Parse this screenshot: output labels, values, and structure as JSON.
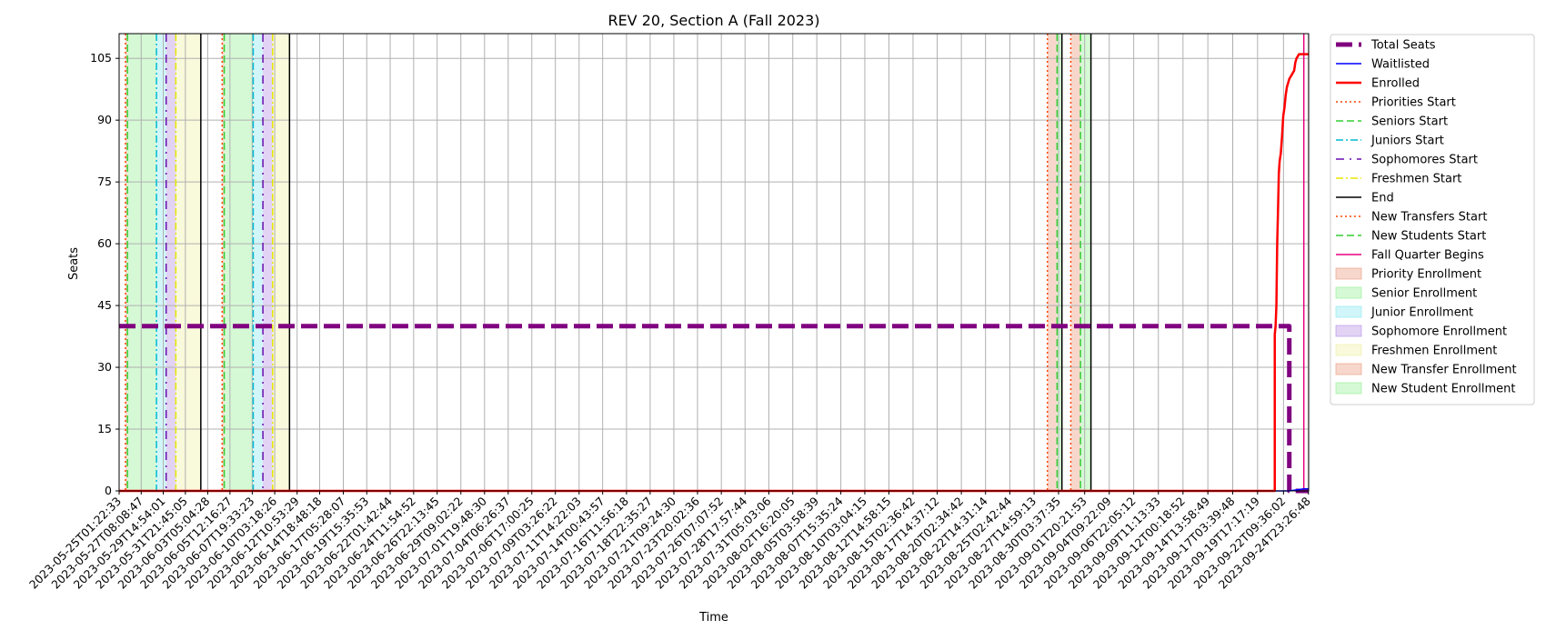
{
  "chart_data": {
    "type": "line",
    "title": "REV 20, Section A (Fall 2023)",
    "xlabel": "Time",
    "ylabel": "Seats",
    "ylim": [
      0,
      111
    ],
    "xlim": [
      "2023-05-25T01:22:33",
      "2023-09-25T00:00:00"
    ],
    "y_ticks": [
      0,
      15,
      30,
      45,
      60,
      75,
      90,
      105
    ],
    "x_ticks": [
      "2023-05-25T01:22:33",
      "2023-05-27T08:08:47",
      "2023-05-29T14:54:01",
      "2023-05-31T21:45:05",
      "2023-06-03T05:04:28",
      "2023-06-05T12:16:27",
      "2023-06-07T19:33:23",
      "2023-06-10T03:18:26",
      "2023-06-12T10:53:29",
      "2023-06-14T18:48:18",
      "2023-06-17T05:28:07",
      "2023-06-19T15:35:53",
      "2023-06-22T01:42:44",
      "2023-06-24T11:54:52",
      "2023-06-26T22:13:45",
      "2023-06-29T09:02:22",
      "2023-07-01T19:48:30",
      "2023-07-04T06:26:37",
      "2023-07-06T17:00:25",
      "2023-07-09T03:26:22",
      "2023-07-11T14:22:03",
      "2023-07-14T00:43:57",
      "2023-07-16T11:56:18",
      "2023-07-18T22:35:27",
      "2023-07-21T09:24:30",
      "2023-07-23T20:02:36",
      "2023-07-26T07:07:52",
      "2023-07-28T17:57:44",
      "2023-07-31T05:03:06",
      "2023-08-02T16:20:05",
      "2023-08-05T03:58:39",
      "2023-08-07T15:35:24",
      "2023-08-10T03:04:15",
      "2023-08-12T14:58:15",
      "2023-08-15T02:36:42",
      "2023-08-17T14:37:12",
      "2023-08-20T02:34:42",
      "2023-08-22T14:31:14",
      "2023-08-25T02:42:44",
      "2023-08-27T14:59:13",
      "2023-08-30T03:37:35",
      "2023-09-01T20:21:53",
      "2023-09-04T09:22:09",
      "2023-09-06T22:05:12",
      "2023-09-09T11:13:33",
      "2023-09-12T00:18:52",
      "2023-09-14T13:58:49",
      "2023-09-17T03:39:48",
      "2023-09-19T17:17:19",
      "2023-09-22T09:36:02",
      "2023-09-24T23:26:48"
    ],
    "grid": true,
    "legend_placement": "outside-right",
    "series": [
      {
        "name": "Total Seats",
        "color": "#800080",
        "style": "dashed-thick",
        "points": [
          [
            "2023-05-25T01:22:33",
            40
          ],
          [
            "2023-09-23T00:00:00",
            40
          ],
          [
            "2023-09-23T00:00:00",
            0
          ],
          [
            "2023-09-25T00:00:00",
            0
          ]
        ]
      },
      {
        "name": "Waitlisted",
        "color": "#0000ff",
        "style": "solid",
        "points": [
          [
            "2023-05-25T01:22:33",
            0
          ],
          [
            "2023-09-23T00:00:00",
            0
          ],
          [
            "2023-09-24T12:00:00",
            0.5
          ],
          [
            "2023-09-25T00:00:00",
            0.5
          ]
        ]
      },
      {
        "name": "Enrolled",
        "color": "#ff0000",
        "style": "solid-thick",
        "points": [
          [
            "2023-05-25T01:22:33",
            0
          ],
          [
            "2023-09-21T12:00:00",
            0
          ],
          [
            "2023-09-21T12:00:00",
            38
          ],
          [
            "2023-09-21T14:00:00",
            40
          ],
          [
            "2023-09-21T16:00:00",
            45
          ],
          [
            "2023-09-21T18:00:00",
            60
          ],
          [
            "2023-09-21T20:00:00",
            68
          ],
          [
            "2023-09-21T22:00:00",
            77
          ],
          [
            "2023-09-22T00:00:00",
            80
          ],
          [
            "2023-09-22T03:00:00",
            82
          ],
          [
            "2023-09-22T06:00:00",
            86
          ],
          [
            "2023-09-22T09:00:00",
            91
          ],
          [
            "2023-09-22T12:00:00",
            93
          ],
          [
            "2023-09-22T15:00:00",
            96
          ],
          [
            "2023-09-22T18:00:00",
            98
          ],
          [
            "2023-09-23T00:00:00",
            100
          ],
          [
            "2023-09-23T06:00:00",
            101
          ],
          [
            "2023-09-23T12:00:00",
            102
          ],
          [
            "2023-09-23T15:00:00",
            104
          ],
          [
            "2023-09-23T18:00:00",
            105
          ],
          [
            "2023-09-24T00:00:00",
            106
          ],
          [
            "2023-09-24T12:00:00",
            106
          ],
          [
            "2023-09-25T00:00:00",
            106
          ]
        ]
      }
    ],
    "vlines": [
      {
        "name": "Priorities Start",
        "color": "#ff4500",
        "style": "dotted",
        "x": [
          "2023-05-25T17:00:00",
          "2023-06-04T17:00:00"
        ]
      },
      {
        "name": "Seniors Start",
        "color": "#32cd32",
        "style": "dashed",
        "x": [
          "2023-05-25T22:00:00",
          "2023-06-04T22:00:00"
        ]
      },
      {
        "name": "Juniors Start",
        "color": "#00bcd4",
        "style": "dashdot",
        "x": [
          "2023-05-28T22:00:00",
          "2023-06-07T22:00:00"
        ]
      },
      {
        "name": "Sophomores Start",
        "color": "#6a0dad",
        "style": "dashdot-sparse",
        "x": [
          "2023-05-29T22:00:00",
          "2023-06-08T22:00:00"
        ]
      },
      {
        "name": "Freshmen Start",
        "color": "#e6e600",
        "style": "dashdot",
        "x": [
          "2023-05-30T22:00:00",
          "2023-06-09T22:00:00"
        ]
      },
      {
        "name": "End",
        "color": "#000000",
        "style": "solid",
        "x": [
          "2023-06-02T12:00:00",
          "2023-06-11T16:00:00",
          "2023-08-30T12:00:00",
          "2023-09-02T12:00:00"
        ]
      },
      {
        "name": "New Transfers Start",
        "color": "#ff4500",
        "style": "dotted",
        "x": [
          "2023-08-29T00:00:00",
          "2023-08-31T10:00:00"
        ]
      },
      {
        "name": "New Students Start",
        "color": "#32cd32",
        "style": "dashed",
        "x": [
          "2023-08-30T00:00:00",
          "2023-09-01T10:00:00"
        ]
      },
      {
        "name": "Fall Quarter Begins",
        "color": "#e6007e",
        "style": "solid",
        "x": [
          "2023-09-24T12:00:00"
        ]
      }
    ],
    "spans": [
      {
        "name": "Priority Enrollment",
        "color": "#e9967a",
        "ranges": [
          [
            "2023-05-25T17:00:00",
            "2023-05-25T22:00:00"
          ],
          [
            "2023-06-04T17:00:00",
            "2023-06-04T22:00:00"
          ]
        ]
      },
      {
        "name": "Senior Enrollment",
        "color": "#90ee90",
        "ranges": [
          [
            "2023-05-25T22:00:00",
            "2023-05-28T22:00:00"
          ],
          [
            "2023-06-04T22:00:00",
            "2023-06-07T22:00:00"
          ]
        ]
      },
      {
        "name": "Junior Enrollment",
        "color": "#87e8f0",
        "ranges": [
          [
            "2023-05-28T22:00:00",
            "2023-05-29T22:00:00"
          ],
          [
            "2023-06-07T22:00:00",
            "2023-06-08T22:00:00"
          ]
        ]
      },
      {
        "name": "Sophomore Enrollment",
        "color": "#b48ce6",
        "ranges": [
          [
            "2023-05-29T22:00:00",
            "2023-05-30T22:00:00"
          ],
          [
            "2023-06-08T22:00:00",
            "2023-06-09T22:00:00"
          ]
        ]
      },
      {
        "name": "Freshmen Enrollment",
        "color": "#f0f0a0",
        "ranges": [
          [
            "2023-05-30T22:00:00",
            "2023-06-02T12:00:00"
          ],
          [
            "2023-06-09T22:00:00",
            "2023-06-11T16:00:00"
          ]
        ]
      },
      {
        "name": "New Transfer Enrollment",
        "color": "#e9967a",
        "ranges": [
          [
            "2023-08-29T00:00:00",
            "2023-08-30T00:00:00"
          ],
          [
            "2023-08-31T10:00:00",
            "2023-09-01T10:00:00"
          ]
        ]
      },
      {
        "name": "New Student Enrollment",
        "color": "#90ee90",
        "ranges": [
          [
            "2023-08-30T00:00:00",
            "2023-08-30T12:00:00"
          ],
          [
            "2023-09-01T10:00:00",
            "2023-09-02T12:00:00"
          ]
        ]
      }
    ],
    "legend": [
      {
        "label": "Total Seats",
        "kind": "line",
        "color": "#800080",
        "style": "dashed-thick"
      },
      {
        "label": "Waitlisted",
        "kind": "line",
        "color": "#0000ff",
        "style": "solid"
      },
      {
        "label": "Enrolled",
        "kind": "line",
        "color": "#ff0000",
        "style": "solid-thick"
      },
      {
        "label": "Priorities Start",
        "kind": "line",
        "color": "#ff4500",
        "style": "dotted"
      },
      {
        "label": "Seniors Start",
        "kind": "line",
        "color": "#32cd32",
        "style": "dashed"
      },
      {
        "label": "Juniors Start",
        "kind": "line",
        "color": "#00bcd4",
        "style": "dashdot"
      },
      {
        "label": "Sophomores Start",
        "kind": "line",
        "color": "#6a0dad",
        "style": "dashdot-sparse"
      },
      {
        "label": "Freshmen Start",
        "kind": "line",
        "color": "#e6e600",
        "style": "dashdot"
      },
      {
        "label": "End",
        "kind": "line",
        "color": "#000000",
        "style": "solid"
      },
      {
        "label": "New Transfers Start",
        "kind": "line",
        "color": "#ff4500",
        "style": "dotted"
      },
      {
        "label": "New Students Start",
        "kind": "line",
        "color": "#32cd32",
        "style": "dashed"
      },
      {
        "label": "Fall Quarter Begins",
        "kind": "line",
        "color": "#e6007e",
        "style": "solid"
      },
      {
        "label": "Priority Enrollment",
        "kind": "patch",
        "color": "#e9967a"
      },
      {
        "label": "Senior Enrollment",
        "kind": "patch",
        "color": "#90ee90"
      },
      {
        "label": "Junior Enrollment",
        "kind": "patch",
        "color": "#87e8f0"
      },
      {
        "label": "Sophomore Enrollment",
        "kind": "patch",
        "color": "#b48ce6"
      },
      {
        "label": "Freshmen Enrollment",
        "kind": "patch",
        "color": "#f0f0a0"
      },
      {
        "label": "New Transfer Enrollment",
        "kind": "patch",
        "color": "#e9967a"
      },
      {
        "label": "New Student Enrollment",
        "kind": "patch",
        "color": "#90ee90"
      }
    ]
  }
}
